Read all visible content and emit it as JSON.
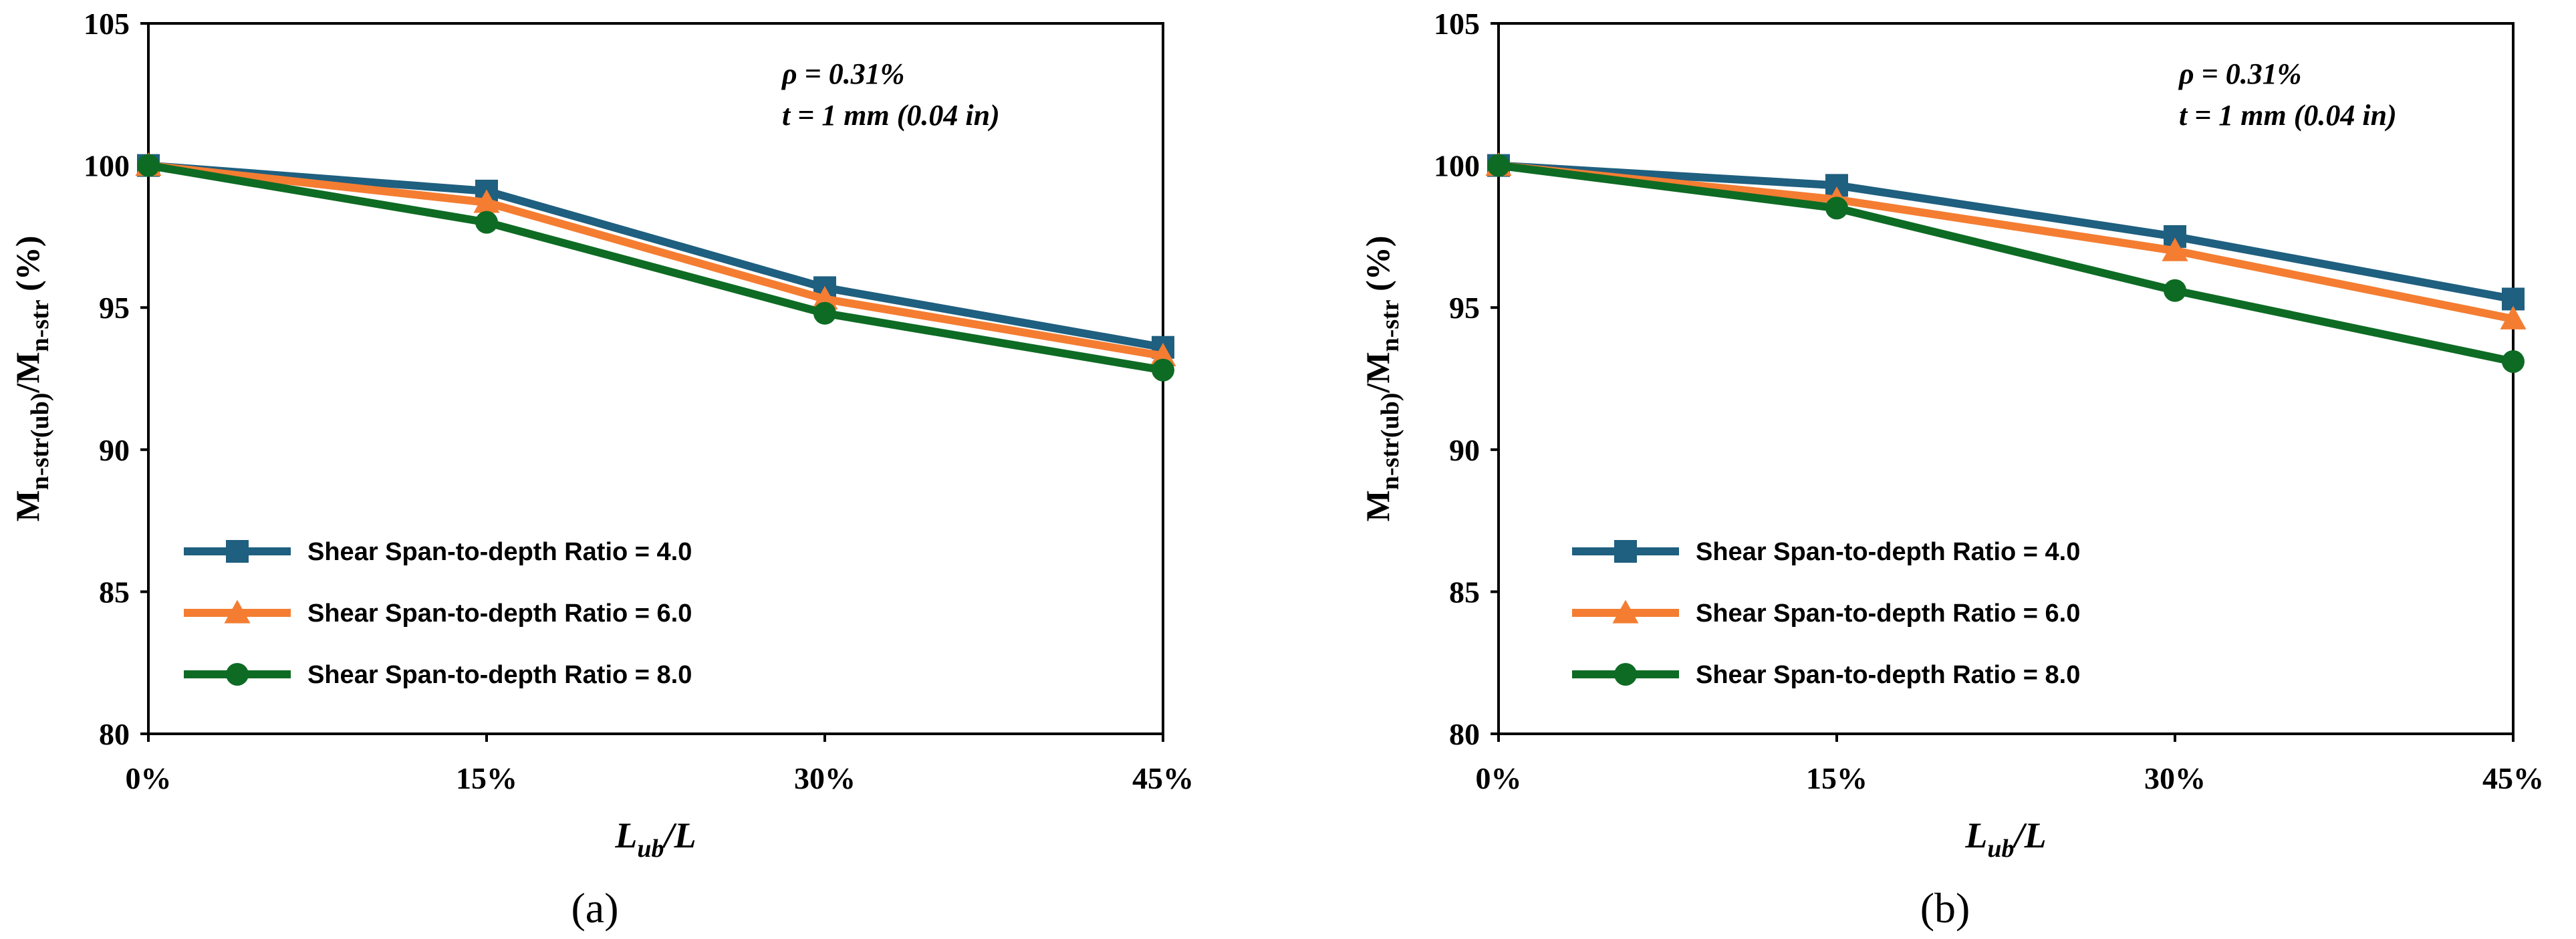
{
  "chart_data": [
    {
      "panel": "(a)",
      "type": "line",
      "xlabel": "Lub/L",
      "ylabel": "Mn-str(ub)/Mn-str (%)",
      "categories": [
        "0%",
        "15%",
        "30%",
        "45%"
      ],
      "ylim": [
        80,
        105
      ],
      "yticks": [
        80,
        85,
        90,
        95,
        100,
        105
      ],
      "annotations": [
        "ρ = 0.31%",
        "t = 1 mm (0.04 in)"
      ],
      "legend_position": "bottom-left",
      "series": [
        {
          "name": "Shear Span-to-depth Ratio = 4.0",
          "color": "#1f5f7f",
          "marker": "square",
          "values": [
            100,
            99.1,
            95.7,
            93.6
          ]
        },
        {
          "name": "Shear Span-to-depth Ratio = 6.0",
          "color": "#f47d32",
          "marker": "triangle",
          "values": [
            100,
            98.7,
            95.3,
            93.3
          ]
        },
        {
          "name": "Shear Span-to-depth Ratio = 8.0",
          "color": "#0e6b24",
          "marker": "circle",
          "values": [
            100,
            98.0,
            94.8,
            92.8
          ]
        }
      ]
    },
    {
      "panel": "(b)",
      "type": "line",
      "xlabel": "Lub/L",
      "ylabel": "Mn-str(ub)/Mn-str (%)",
      "categories": [
        "0%",
        "15%",
        "30%",
        "45%"
      ],
      "ylim": [
        80,
        105
      ],
      "yticks": [
        80,
        85,
        90,
        95,
        100,
        105
      ],
      "annotations": [
        "ρ = 0.31%",
        "t = 1 mm (0.04 in)"
      ],
      "legend_position": "bottom-left",
      "series": [
        {
          "name": "Shear Span-to-depth Ratio = 4.0",
          "color": "#1f5f7f",
          "marker": "square",
          "values": [
            100,
            99.3,
            97.5,
            95.3
          ]
        },
        {
          "name": "Shear Span-to-depth Ratio = 6.0",
          "color": "#f47d32",
          "marker": "triangle",
          "values": [
            100,
            98.8,
            97.0,
            94.6
          ]
        },
        {
          "name": "Shear Span-to-depth Ratio = 8.0",
          "color": "#0e6b24",
          "marker": "circle",
          "values": [
            100,
            98.5,
            95.6,
            93.1
          ]
        }
      ]
    }
  ]
}
